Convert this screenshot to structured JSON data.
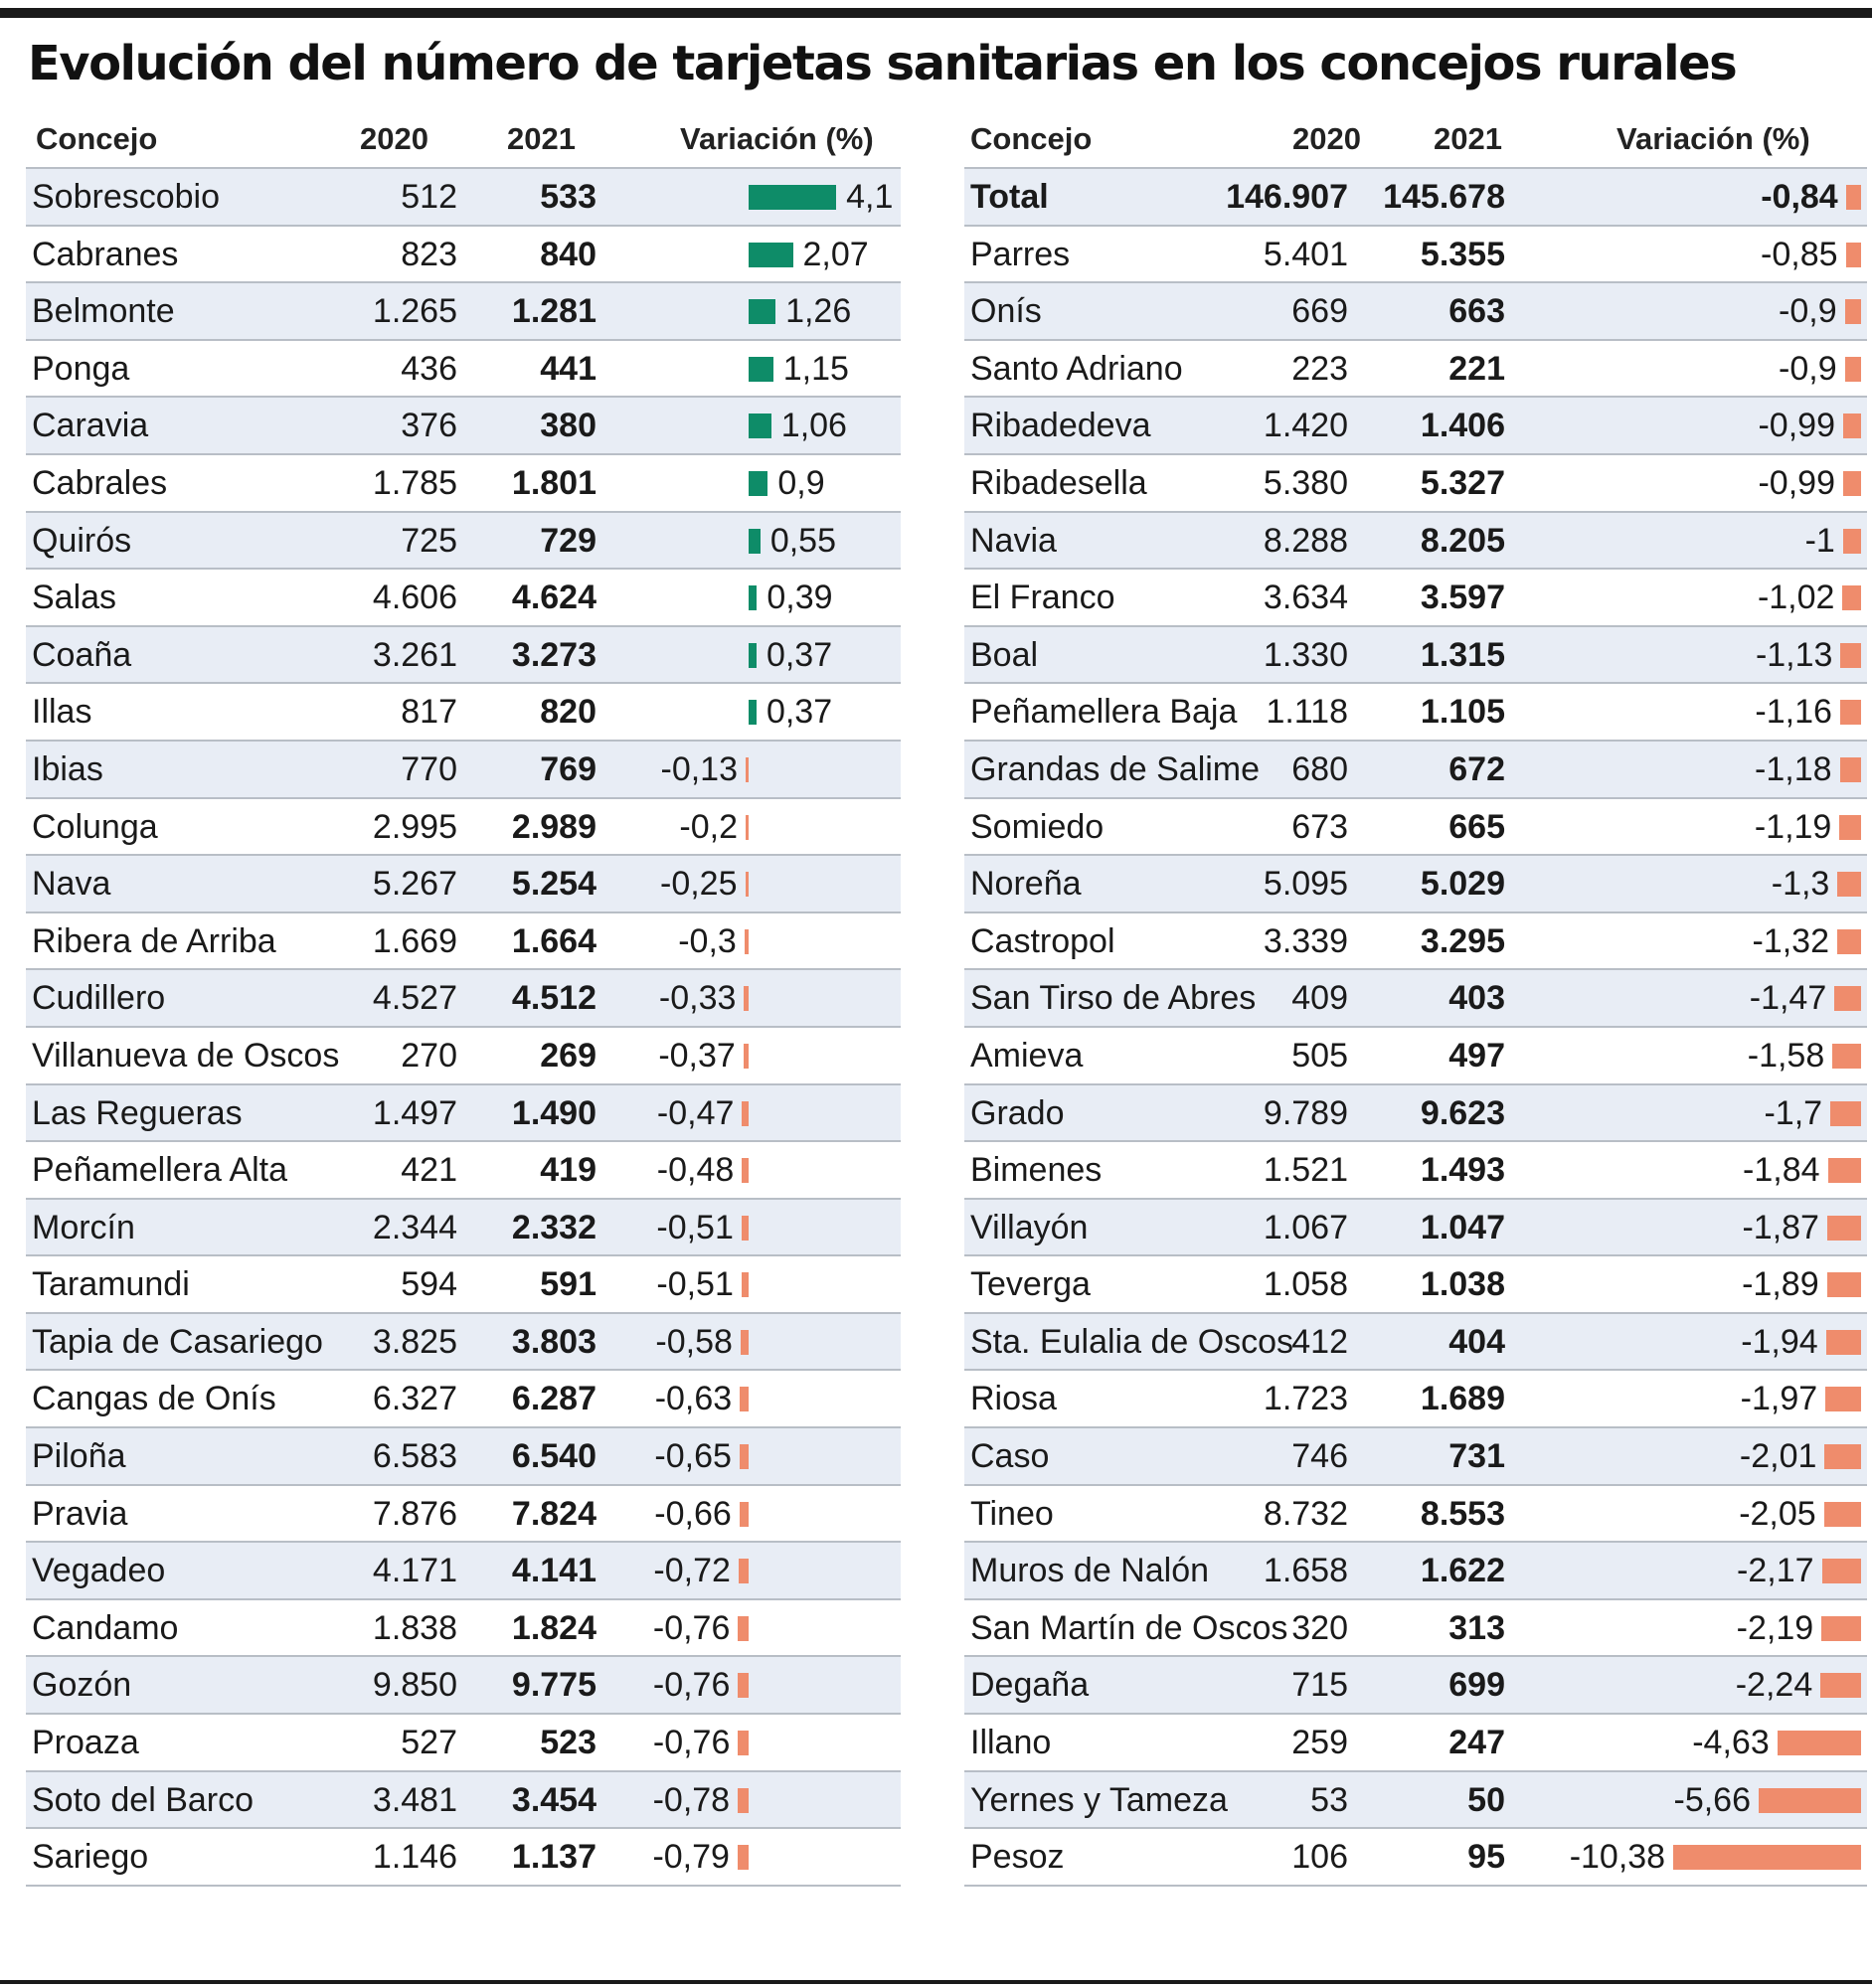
{
  "title": "Evolución del número de tarjetas sanitarias en los concejos rurales",
  "colors": {
    "positive": "#0e8c68",
    "negative": "#ef8c6c",
    "row_alt": "#e8edf5"
  },
  "chart_data": {
    "type": "table",
    "columns": [
      "Concejo",
      "2020",
      "2021",
      "Variación (%)"
    ],
    "left_rows": [
      {
        "concejo": "Sobrescobio",
        "y2020": "512",
        "y2021": "533",
        "var_label": "4,1",
        "var": 4.1
      },
      {
        "concejo": "Cabranes",
        "y2020": "823",
        "y2021": "840",
        "var_label": "2,07",
        "var": 2.07
      },
      {
        "concejo": "Belmonte",
        "y2020": "1.265",
        "y2021": "1.281",
        "var_label": "1,26",
        "var": 1.26
      },
      {
        "concejo": "Ponga",
        "y2020": "436",
        "y2021": "441",
        "var_label": "1,15",
        "var": 1.15
      },
      {
        "concejo": "Caravia",
        "y2020": "376",
        "y2021": "380",
        "var_label": "1,06",
        "var": 1.06
      },
      {
        "concejo": "Cabrales",
        "y2020": "1.785",
        "y2021": "1.801",
        "var_label": "0,9",
        "var": 0.9
      },
      {
        "concejo": "Quirós",
        "y2020": "725",
        "y2021": "729",
        "var_label": "0,55",
        "var": 0.55
      },
      {
        "concejo": "Salas",
        "y2020": "4.606",
        "y2021": "4.624",
        "var_label": "0,39",
        "var": 0.39
      },
      {
        "concejo": "Coaña",
        "y2020": "3.261",
        "y2021": "3.273",
        "var_label": "0,37",
        "var": 0.37
      },
      {
        "concejo": "Illas",
        "y2020": "817",
        "y2021": "820",
        "var_label": "0,37",
        "var": 0.37
      },
      {
        "concejo": "Ibias",
        "y2020": "770",
        "y2021": "769",
        "var_label": "-0,13",
        "var": -0.13
      },
      {
        "concejo": "Colunga",
        "y2020": "2.995",
        "y2021": "2.989",
        "var_label": "-0,2",
        "var": -0.2
      },
      {
        "concejo": "Nava",
        "y2020": "5.267",
        "y2021": "5.254",
        "var_label": "-0,25",
        "var": -0.25
      },
      {
        "concejo": "Ribera de Arriba",
        "y2020": "1.669",
        "y2021": "1.664",
        "var_label": "-0,3",
        "var": -0.3
      },
      {
        "concejo": "Cudillero",
        "y2020": "4.527",
        "y2021": "4.512",
        "var_label": "-0,33",
        "var": -0.33
      },
      {
        "concejo": "Villanueva de Oscos",
        "y2020": "270",
        "y2021": "269",
        "var_label": "-0,37",
        "var": -0.37
      },
      {
        "concejo": "Las Regueras",
        "y2020": "1.497",
        "y2021": "1.490",
        "var_label": "-0,47",
        "var": -0.47
      },
      {
        "concejo": "Peñamellera Alta",
        "y2020": "421",
        "y2021": "419",
        "var_label": "-0,48",
        "var": -0.48
      },
      {
        "concejo": "Morcín",
        "y2020": "2.344",
        "y2021": "2.332",
        "var_label": "-0,51",
        "var": -0.51
      },
      {
        "concejo": "Taramundi",
        "y2020": "594",
        "y2021": "591",
        "var_label": "-0,51",
        "var": -0.51
      },
      {
        "concejo": "Tapia de Casariego",
        "y2020": "3.825",
        "y2021": "3.803",
        "var_label": "-0,58",
        "var": -0.58
      },
      {
        "concejo": "Cangas de Onís",
        "y2020": "6.327",
        "y2021": "6.287",
        "var_label": "-0,63",
        "var": -0.63
      },
      {
        "concejo": "Piloña",
        "y2020": "6.583",
        "y2021": "6.540",
        "var_label": "-0,65",
        "var": -0.65
      },
      {
        "concejo": "Pravia",
        "y2020": "7.876",
        "y2021": "7.824",
        "var_label": "-0,66",
        "var": -0.66
      },
      {
        "concejo": "Vegadeo",
        "y2020": "4.171",
        "y2021": "4.141",
        "var_label": "-0,72",
        "var": -0.72
      },
      {
        "concejo": "Candamo",
        "y2020": "1.838",
        "y2021": "1.824",
        "var_label": "-0,76",
        "var": -0.76
      },
      {
        "concejo": "Gozón",
        "y2020": "9.850",
        "y2021": "9.775",
        "var_label": "-0,76",
        "var": -0.76
      },
      {
        "concejo": "Proaza",
        "y2020": "527",
        "y2021": "523",
        "var_label": "-0,76",
        "var": -0.76
      },
      {
        "concejo": "Soto del Barco",
        "y2020": "3.481",
        "y2021": "3.454",
        "var_label": "-0,78",
        "var": -0.78
      },
      {
        "concejo": "Sariego",
        "y2020": "1.146",
        "y2021": "1.137",
        "var_label": "-0,79",
        "var": -0.79
      }
    ],
    "right_rows": [
      {
        "concejo": "Total",
        "y2020": "146.907",
        "y2021": "145.678",
        "var_label": "-0,84",
        "var": -0.84,
        "total": true
      },
      {
        "concejo": "Parres",
        "y2020": "5.401",
        "y2021": "5.355",
        "var_label": "-0,85",
        "var": -0.85
      },
      {
        "concejo": "Onís",
        "y2020": "669",
        "y2021": "663",
        "var_label": "-0,9",
        "var": -0.9
      },
      {
        "concejo": "Santo Adriano",
        "y2020": "223",
        "y2021": "221",
        "var_label": "-0,9",
        "var": -0.9
      },
      {
        "concejo": "Ribadedeva",
        "y2020": "1.420",
        "y2021": "1.406",
        "var_label": "-0,99",
        "var": -0.99
      },
      {
        "concejo": "Ribadesella",
        "y2020": "5.380",
        "y2021": "5.327",
        "var_label": "-0,99",
        "var": -0.99
      },
      {
        "concejo": "Navia",
        "y2020": "8.288",
        "y2021": "8.205",
        "var_label": "-1",
        "var": -1
      },
      {
        "concejo": "El Franco",
        "y2020": "3.634",
        "y2021": "3.597",
        "var_label": "-1,02",
        "var": -1.02
      },
      {
        "concejo": "Boal",
        "y2020": "1.330",
        "y2021": "1.315",
        "var_label": "-1,13",
        "var": -1.13
      },
      {
        "concejo": "Peñamellera Baja",
        "y2020": "1.118",
        "y2021": "1.105",
        "var_label": "-1,16",
        "var": -1.16
      },
      {
        "concejo": "Grandas de Salime",
        "y2020": "680",
        "y2021": "672",
        "var_label": "-1,18",
        "var": -1.18
      },
      {
        "concejo": "Somiedo",
        "y2020": "673",
        "y2021": "665",
        "var_label": "-1,19",
        "var": -1.19
      },
      {
        "concejo": "Noreña",
        "y2020": "5.095",
        "y2021": "5.029",
        "var_label": "-1,3",
        "var": -1.3
      },
      {
        "concejo": "Castropol",
        "y2020": "3.339",
        "y2021": "3.295",
        "var_label": "-1,32",
        "var": -1.32
      },
      {
        "concejo": "San Tirso de Abres",
        "y2020": "409",
        "y2021": "403",
        "var_label": "-1,47",
        "var": -1.47
      },
      {
        "concejo": "Amieva",
        "y2020": "505",
        "y2021": "497",
        "var_label": "-1,58",
        "var": -1.58
      },
      {
        "concejo": "Grado",
        "y2020": "9.789",
        "y2021": "9.623",
        "var_label": "-1,7",
        "var": -1.7
      },
      {
        "concejo": "Bimenes",
        "y2020": "1.521",
        "y2021": "1.493",
        "var_label": "-1,84",
        "var": -1.84
      },
      {
        "concejo": "Villayón",
        "y2020": "1.067",
        "y2021": "1.047",
        "var_label": "-1,87",
        "var": -1.87
      },
      {
        "concejo": "Teverga",
        "y2020": "1.058",
        "y2021": "1.038",
        "var_label": "-1,89",
        "var": -1.89
      },
      {
        "concejo": "Sta. Eulalia de Oscos",
        "y2020": "412",
        "y2021": "404",
        "var_label": "-1,94",
        "var": -1.94
      },
      {
        "concejo": "Riosa",
        "y2020": "1.723",
        "y2021": "1.689",
        "var_label": "-1,97",
        "var": -1.97
      },
      {
        "concejo": "Caso",
        "y2020": "746",
        "y2021": "731",
        "var_label": "-2,01",
        "var": -2.01
      },
      {
        "concejo": "Tineo",
        "y2020": "8.732",
        "y2021": "8.553",
        "var_label": "-2,05",
        "var": -2.05
      },
      {
        "concejo": "Muros de Nalón",
        "y2020": "1.658",
        "y2021": "1.622",
        "var_label": "-2,17",
        "var": -2.17
      },
      {
        "concejo": "San Martín de Oscos",
        "y2020": "320",
        "y2021": "313",
        "var_label": "-2,19",
        "var": -2.19
      },
      {
        "concejo": "Degaña",
        "y2020": "715",
        "y2021": "699",
        "var_label": "-2,24",
        "var": -2.24
      },
      {
        "concejo": "Illano",
        "y2020": "259",
        "y2021": "247",
        "var_label": "-4,63",
        "var": -4.63
      },
      {
        "concejo": "Yernes y Tameza",
        "y2020": "53",
        "y2021": "50",
        "var_label": "-5,66",
        "var": -5.66
      },
      {
        "concejo": "Pesoz",
        "y2020": "106",
        "y2021": "95",
        "var_label": "-10,38",
        "var": -10.38
      }
    ]
  }
}
